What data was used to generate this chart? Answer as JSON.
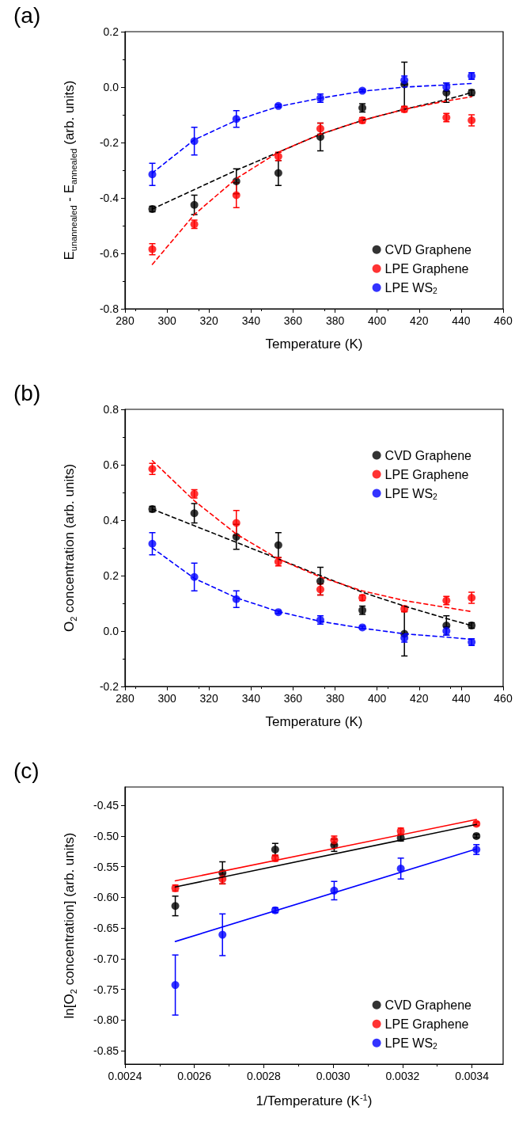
{
  "chart_data": [
    {
      "type": "scatter",
      "title": "(a)",
      "xlabel": "Temperature (K)",
      "ylabel": "E$_{unannealed}$ - E$_{annealed}$ (arb. units)",
      "xlim": [
        280,
        460
      ],
      "xticks": [
        280,
        300,
        320,
        340,
        360,
        380,
        400,
        420,
        440,
        460
      ],
      "ylim": [
        -0.8,
        0.2
      ],
      "yticks": [
        -0.8,
        -0.6,
        -0.4,
        -0.2,
        {
          "value": 0,
          "label": "0.0"
        },
        0.2
      ],
      "legend": "bottom right",
      "marker": "circle",
      "grid": false,
      "x": [
        293,
        313,
        333,
        353,
        373,
        393,
        413,
        433,
        445
      ],
      "series": [
        {
          "name": "CVD Graphene",
          "color": "#000000",
          "values": [
            -0.44,
            -0.425,
            -0.34,
            -0.31,
            -0.18,
            -0.075,
            0.01,
            -0.02,
            -0.02
          ],
          "errors": [
            0.01,
            0.035,
            0.045,
            0.045,
            0.05,
            0.015,
            0.08,
            0.035,
            0.01
          ]
        },
        {
          "name": "LPE Graphene",
          "color": "#ff0000",
          "values": [
            -0.585,
            -0.495,
            -0.39,
            -0.25,
            -0.15,
            -0.12,
            -0.08,
            -0.11,
            -0.12
          ],
          "errors": [
            0.02,
            0.015,
            0.045,
            0.015,
            0.02,
            0.01,
            0.01,
            0.015,
            0.02
          ]
        },
        {
          "name": "LPE WS$_{2}$",
          "color": "#0000ff",
          "values": [
            -0.315,
            -0.195,
            -0.115,
            -0.068,
            -0.04,
            -0.013,
            0.025,
            0.0,
            0.04
          ],
          "errors": [
            0.04,
            0.05,
            0.03,
            0.005,
            0.015,
            0.005,
            0.015,
            0.015,
            0.012
          ]
        },
        {
          "type": "line",
          "color": "#000000",
          "line_style": "dashed",
          "marker": "none",
          "x": [
            293,
            313,
            333,
            353,
            373,
            393,
            413,
            433,
            445
          ],
          "values": [
            -0.44,
            -0.37,
            -0.3,
            -0.235,
            -0.17,
            -0.12,
            -0.08,
            -0.045,
            -0.02
          ]
        },
        {
          "type": "line",
          "color": "#ff0000",
          "line_style": "dashed",
          "marker": "none",
          "x": [
            293,
            313,
            333,
            353,
            373,
            393,
            413,
            433,
            445
          ],
          "values": [
            -0.64,
            -0.46,
            -0.33,
            -0.235,
            -0.17,
            -0.12,
            -0.08,
            -0.05,
            -0.035
          ]
        },
        {
          "type": "line",
          "color": "#0000ff",
          "line_style": "dashed",
          "marker": "none",
          "x": [
            293,
            313,
            333,
            353,
            373,
            393,
            413,
            433,
            445
          ],
          "values": [
            -0.31,
            -0.19,
            -0.12,
            -0.07,
            -0.04,
            -0.015,
            0.0,
            0.008,
            0.013
          ]
        }
      ]
    },
    {
      "type": "scatter",
      "title": "(b)",
      "xlabel": "Temperature (K)",
      "ylabel": "O$_{2}$ concentration (arb. units)",
      "xlim": [
        280,
        460
      ],
      "xticks": [
        280,
        300,
        320,
        340,
        360,
        380,
        400,
        420,
        440,
        460
      ],
      "ylim": [
        -0.2,
        0.8
      ],
      "yticks": [
        -0.2,
        {
          "value": 0,
          "label": "0.0"
        },
        0.2,
        0.4,
        0.6,
        0.8
      ],
      "legend": "top right",
      "marker": "circle",
      "grid": false,
      "x": [
        293,
        313,
        333,
        353,
        373,
        393,
        413,
        433,
        445
      ],
      "series": [
        {
          "name": "CVD Graphene",
          "color": "#000000",
          "values": [
            0.44,
            0.425,
            0.34,
            0.31,
            0.18,
            0.075,
            -0.01,
            0.02,
            0.02
          ],
          "errors": [
            0.01,
            0.035,
            0.045,
            0.045,
            0.05,
            0.015,
            0.08,
            0.035,
            0.01
          ]
        },
        {
          "name": "LPE Graphene",
          "color": "#ff0000",
          "values": [
            0.585,
            0.495,
            0.39,
            0.25,
            0.15,
            0.12,
            0.08,
            0.11,
            0.12
          ],
          "errors": [
            0.02,
            0.015,
            0.045,
            0.015,
            0.02,
            0.01,
            0.01,
            0.015,
            0.02
          ]
        },
        {
          "name": "LPE WS$_{2}$",
          "color": "#0000ff",
          "values": [
            0.315,
            0.195,
            0.115,
            0.068,
            0.04,
            0.013,
            -0.025,
            0.0,
            -0.04
          ],
          "errors": [
            0.04,
            0.05,
            0.03,
            0.005,
            0.015,
            0.005,
            0.015,
            0.015,
            0.012
          ]
        },
        {
          "type": "line",
          "color": "#000000",
          "line_style": "dashed",
          "marker": "none",
          "x": [
            293,
            313,
            333,
            353,
            373,
            393,
            413,
            433,
            445
          ],
          "values": [
            0.44,
            0.38,
            0.32,
            0.26,
            0.2,
            0.14,
            0.09,
            0.045,
            0.02
          ]
        },
        {
          "type": "line",
          "color": "#ff0000",
          "line_style": "dashed",
          "marker": "none",
          "x": [
            293,
            313,
            333,
            353,
            373,
            393,
            413,
            433,
            445
          ],
          "values": [
            0.615,
            0.47,
            0.35,
            0.26,
            0.195,
            0.145,
            0.11,
            0.085,
            0.07
          ]
        },
        {
          "type": "line",
          "color": "#0000ff",
          "line_style": "dashed",
          "marker": "none",
          "x": [
            293,
            313,
            333,
            353,
            373,
            393,
            413,
            433,
            445
          ],
          "values": [
            0.3,
            0.19,
            0.12,
            0.07,
            0.035,
            0.01,
            -0.01,
            -0.022,
            -0.03
          ]
        }
      ]
    },
    {
      "type": "scatter",
      "title": "(c)",
      "xlabel": "1/Temperature (K$^{-1}$)",
      "ylabel": "ln[O$_{2}$ concentration] (arb. units)",
      "xlim": [
        0.0024,
        0.00349
      ],
      "xticks": [
        0.0024,
        0.0026,
        0.0028,
        {
          "value": 0.003,
          "label": "0.0030"
        },
        0.0032,
        0.0034
      ],
      "ylim": [
        -0.872,
        -0.42
      ],
      "yticks": [
        -0.85,
        {
          "value": -0.8,
          "label": "-0.80"
        },
        -0.75,
        {
          "value": -0.7,
          "label": "-0.70"
        },
        -0.65,
        {
          "value": -0.6,
          "label": "-0.60"
        },
        -0.55,
        {
          "value": -0.5,
          "label": "-0.50"
        },
        -0.45
      ],
      "legend": "bottom right",
      "marker": "circle",
      "grid": false,
      "x": [
        0.002545,
        0.002681,
        0.002833,
        0.003003,
        0.003195,
        0.003413
      ],
      "series": [
        {
          "name": "CVD Graphene",
          "color": "#000000",
          "values": [
            -0.614,
            -0.56,
            -0.522,
            -0.515,
            -0.503,
            -0.5
          ],
          "errors": [
            0.016,
            0.018,
            0.01,
            0.01,
            0.005,
            0.003
          ]
        },
        {
          "name": "LPE Graphene",
          "color": "#ff0000",
          "values": [
            -0.585,
            -0.57,
            -0.536,
            -0.507,
            -0.492,
            -0.48
          ],
          "errors": [
            0.005,
            0.008,
            0.005,
            0.007,
            0.005,
            0.003
          ]
        },
        {
          "name": "LPE WS$_{2}$",
          "color": "#0000ff",
          "values": [
            -0.743,
            -0.661,
            -0.621,
            -0.589,
            -0.553,
            -0.522
          ],
          "errors": [
            0.049,
            0.034,
            0.004,
            0.015,
            0.017,
            0.008
          ]
        },
        {
          "type": "line",
          "color": "#ff0000",
          "line_style": "solid",
          "marker": "none",
          "x": [
            0.002545,
            0.003413
          ],
          "values": [
            -0.573,
            -0.473
          ]
        },
        {
          "type": "line",
          "color": "#000000",
          "line_style": "solid",
          "marker": "none",
          "x": [
            0.002545,
            0.003413
          ],
          "values": [
            -0.583,
            -0.481
          ]
        },
        {
          "type": "line",
          "color": "#0000ff",
          "line_style": "solid",
          "marker": "none",
          "x": [
            0.002545,
            0.003413
          ],
          "values": [
            -0.672,
            -0.521
          ]
        }
      ]
    }
  ]
}
